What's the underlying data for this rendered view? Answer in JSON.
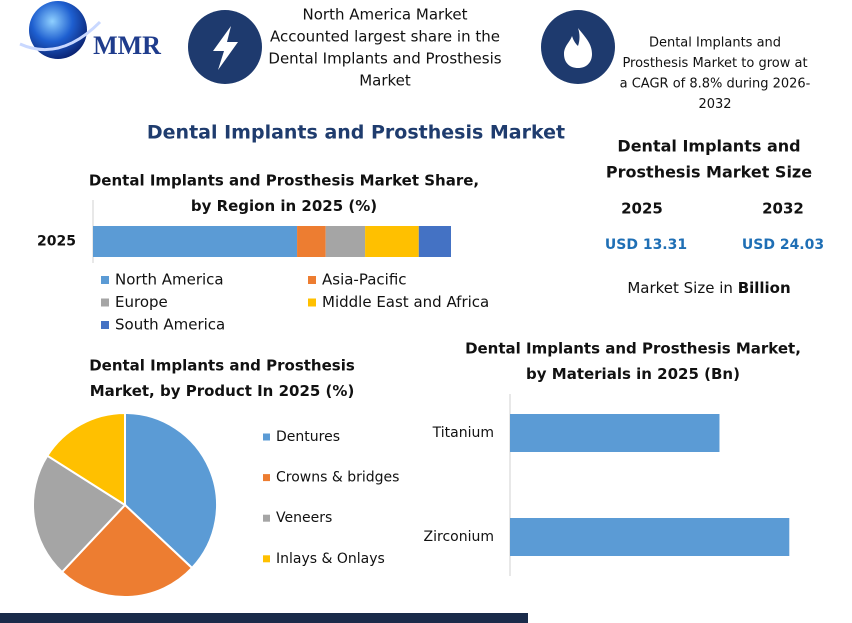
{
  "logo": "MMR",
  "callouts": [
    [
      "North America Market",
      "Accounted largest share in the",
      "Dental Implants and Prosthesis",
      "Market"
    ],
    [
      "Dental Implants and",
      "Prosthesis Market to grow at",
      "a CAGR of 8.8% during 2026-",
      "2032"
    ]
  ],
  "title": "Dental Implants and Prosthesis Market",
  "market_size": {
    "title": [
      "Dental Implants and",
      "Prosthesis Market Size"
    ],
    "years": [
      "2025",
      "2032"
    ],
    "values": [
      "USD 13.31",
      "USD 24.03"
    ],
    "note": "Market Size in",
    "unit": "Billion"
  },
  "chart_data": [
    {
      "type": "bar",
      "orientation": "horizontal",
      "stacked": true,
      "title": [
        "Dental Implants and Prosthesis Market Share,",
        "by Region in 2025 (%)"
      ],
      "categories": [
        "2025"
      ],
      "xlim": [
        0,
        100
      ],
      "series": [
        {
          "name": "North America",
          "color": "#5b9bd5",
          "values": [
            57
          ]
        },
        {
          "name": "Asia-Pacific",
          "color": "#ed7d31",
          "values": [
            8
          ]
        },
        {
          "name": "Europe",
          "color": "#a5a5a5",
          "values": [
            11
          ]
        },
        {
          "name": "Middle East and Africa",
          "color": "#ffc000",
          "values": [
            15
          ]
        },
        {
          "name": "South America",
          "color": "#4472c4",
          "values": [
            9
          ]
        }
      ]
    },
    {
      "type": "pie",
      "title": [
        "Dental Implants and Prosthesis",
        "Market, by Product In 2025 (%)"
      ],
      "categories": [
        "Dentures",
        "Crowns & bridges",
        "Veneers",
        "Inlays & Onlays"
      ],
      "values": [
        37,
        25,
        22,
        16
      ],
      "colors": [
        "#5b9bd5",
        "#ed7d31",
        "#a5a5a5",
        "#ffc000"
      ]
    },
    {
      "type": "bar",
      "orientation": "horizontal",
      "title": [
        "Dental Implants and Prosthesis Market,",
        "by Materials in 2025 (Bn)"
      ],
      "categories": [
        "Titanium",
        "Zirconium"
      ],
      "values": [
        5.7,
        7.6
      ],
      "color": "#5b9bd5",
      "xlim": [
        0,
        8
      ]
    }
  ]
}
